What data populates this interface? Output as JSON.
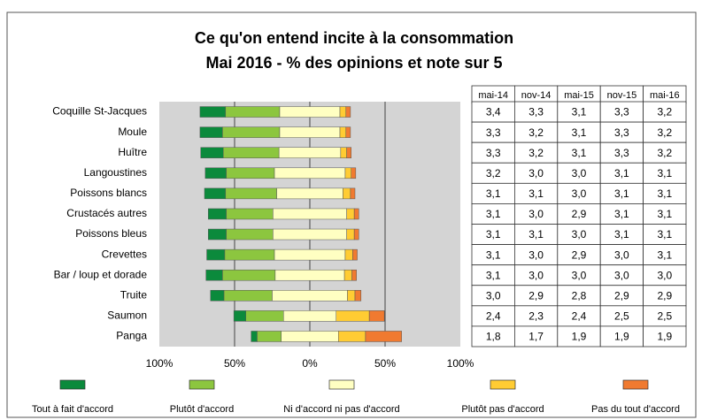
{
  "chart_data": {
    "type": "diverging_bar",
    "title": "Ce qu'on entend incite à la consommation",
    "subtitle": "Mai 2016 - % des opinions et note sur 5",
    "categories": [
      "Coquille St-Jacques",
      "Moule",
      "Huître",
      "Langoustines",
      "Poissons blancs",
      "Crustacés autres",
      "Poissons bleus",
      "Crevettes",
      "Bar / loup et dorade",
      "Truite",
      "Saumon",
      "Panga"
    ],
    "series": [
      {
        "name": "Tout à fait d'accord",
        "color": "#0b8a3c",
        "values": [
          17,
          15,
          15,
          14,
          14,
          12,
          12,
          12,
          11,
          9,
          8,
          4
        ]
      },
      {
        "name": "Plutôt d'accord",
        "color": "#8cc63f",
        "values": [
          36,
          38,
          37,
          32,
          34,
          31,
          31,
          33,
          35,
          32,
          25,
          16
        ]
      },
      {
        "name": "Ni d'accord ni pas d'accord",
        "color": "#ffffc2",
        "values": [
          40,
          40,
          41,
          47,
          44,
          49,
          49,
          47,
          46,
          50,
          35,
          38
        ]
      },
      {
        "name": "Plutôt pas d'accord",
        "color": "#ffcc33",
        "values": [
          4,
          4,
          4,
          4,
          5,
          5,
          5,
          5,
          5,
          5,
          22,
          18
        ]
      },
      {
        "name": "Pas du tout d'accord",
        "color": "#f07a30",
        "values": [
          3,
          3,
          3,
          3,
          3,
          3,
          3,
          3,
          3,
          4,
          10,
          24
        ]
      }
    ],
    "xlim": [
      -100,
      100
    ],
    "xticks": [
      {
        "value": -100,
        "label": "100%"
      },
      {
        "value": -50,
        "label": "50%"
      },
      {
        "value": 0,
        "label": "0%"
      },
      {
        "value": 50,
        "label": "50%"
      },
      {
        "value": 100,
        "label": "100%"
      }
    ],
    "grid": true
  },
  "table": {
    "header": [
      "mai-14",
      "nov-14",
      "mai-15",
      "nov-15",
      "mai-16"
    ],
    "rows": [
      [
        "3,4",
        "3,3",
        "3,1",
        "3,3",
        "3,2"
      ],
      [
        "3,3",
        "3,2",
        "3,1",
        "3,3",
        "3,2"
      ],
      [
        "3,3",
        "3,2",
        "3,1",
        "3,3",
        "3,2"
      ],
      [
        "3,2",
        "3,0",
        "3,0",
        "3,1",
        "3,1"
      ],
      [
        "3,1",
        "3,1",
        "3,0",
        "3,1",
        "3,1"
      ],
      [
        "3,1",
        "3,0",
        "2,9",
        "3,1",
        "3,1"
      ],
      [
        "3,1",
        "3,1",
        "3,0",
        "3,1",
        "3,1"
      ],
      [
        "3,1",
        "3,0",
        "2,9",
        "3,0",
        "3,1"
      ],
      [
        "3,1",
        "3,0",
        "3,0",
        "3,0",
        "3,0"
      ],
      [
        "3,0",
        "2,9",
        "2,8",
        "2,9",
        "2,9"
      ],
      [
        "2,4",
        "2,3",
        "2,4",
        "2,5",
        "2,5"
      ],
      [
        "1,8",
        "1,7",
        "1,9",
        "1,9",
        "1,9"
      ]
    ],
    "cell_colors": [
      [
        "#000000",
        "#e02b2b",
        "#e02b2b",
        "#2ea02e",
        "#000000"
      ],
      [
        "#000000",
        "#e02b2b",
        "#e02b2b",
        "#2ea02e",
        "#e02b2b"
      ],
      [
        "#000000",
        "#e02b2b",
        "#000000",
        "#2ea02e",
        "#e02b2b"
      ],
      [
        "#000000",
        "#e02b2b",
        "#000000",
        "#2ea02e",
        "#000000"
      ],
      [
        "#000000",
        "#e02b2b",
        "#e02b2b",
        "#2ea02e",
        "#000000"
      ],
      [
        "#000000",
        "#e02b2b",
        "#000000",
        "#2ea02e",
        "#000000"
      ],
      [
        "#000000",
        "#000000",
        "#000000",
        "#2ea02e",
        "#000000"
      ],
      [
        "#000000",
        "#e02b2b",
        "#000000",
        "#000000",
        "#000000"
      ],
      [
        "#000000",
        "#000000",
        "#000000",
        "#000000",
        "#000000"
      ],
      [
        "#000000",
        "#e02b2b",
        "#e02b2b",
        "#2ea02e",
        "#000000"
      ],
      [
        "#000000",
        "#000000",
        "#000000",
        "#2ea02e",
        "#000000"
      ],
      [
        "#000000",
        "#e02b2b",
        "#2ea02e",
        "#000000",
        "#000000"
      ]
    ]
  }
}
